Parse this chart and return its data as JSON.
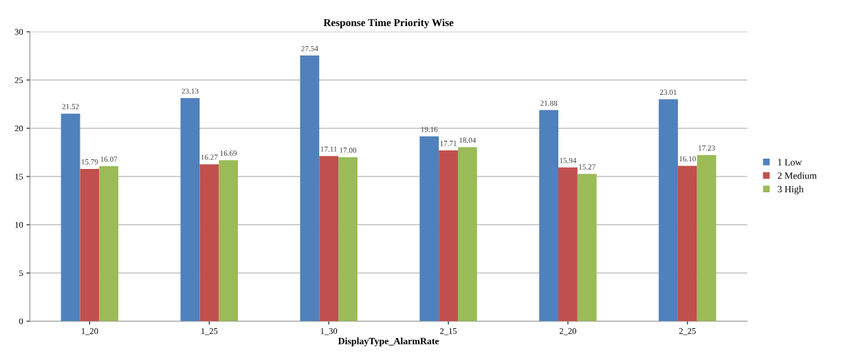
{
  "chart_data": {
    "type": "bar",
    "title": "Response Time Priority Wise",
    "xlabel": "DisplayType_AlarmRate",
    "categories": [
      "1_20",
      "1_25",
      "1_30",
      "2_15",
      "2_20",
      "2_25"
    ],
    "series": [
      {
        "name": "1 Low",
        "color": "#4f81bd",
        "values": [
          21.52,
          23.13,
          27.54,
          19.16,
          21.88,
          23.01
        ],
        "value_labels": [
          "21.52",
          "23.13",
          "27.54",
          "19.16",
          "21.88",
          "23.01"
        ]
      },
      {
        "name": "2 Medium",
        "color": "#c0504d",
        "values": [
          15.79,
          16.27,
          17.11,
          17.71,
          15.94,
          16.1
        ],
        "value_labels": [
          "15.79",
          "16.27",
          "17.11",
          "17.71",
          "15.94",
          "16.10"
        ]
      },
      {
        "name": "3 High",
        "color": "#9bbb59",
        "values": [
          16.07,
          16.69,
          17.0,
          18.04,
          15.27,
          17.23
        ],
        "value_labels": [
          "16.07",
          "16.69",
          "17.00",
          "18.04",
          "15.27",
          "17.23"
        ]
      }
    ],
    "ylim": [
      0,
      30
    ],
    "yticks": [
      0,
      5,
      10,
      15,
      20,
      25,
      30
    ],
    "grid": "y",
    "legend": "right"
  }
}
